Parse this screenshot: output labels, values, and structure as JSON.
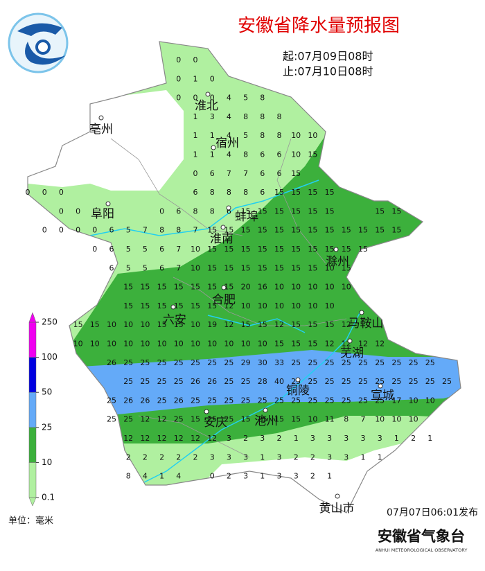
{
  "title": "安徽省降水量预报图",
  "start_time": "起:07月09日08时",
  "end_time": "止:07月10日08时",
  "cities": [
    "淮北",
    "宿州",
    "亳州",
    "阜阳",
    "蚌埠",
    "淮南",
    "滁州",
    "合肥",
    "六安",
    "马鞍山",
    "芜湖",
    "铜陵",
    "宣城",
    "安庆",
    "池州",
    "黄山市"
  ],
  "grid": {
    "rows": [
      [
        null,
        null,
        null,
        null,
        null,
        null,
        null,
        null,
        null,
        0,
        0
      ],
      [
        null,
        null,
        null,
        null,
        null,
        null,
        null,
        null,
        null,
        0,
        1,
        0
      ],
      [
        null,
        null,
        null,
        null,
        null,
        null,
        null,
        null,
        null,
        0,
        0,
        0,
        4,
        5,
        8
      ],
      [
        null,
        null,
        null,
        null,
        null,
        null,
        null,
        null,
        null,
        null,
        1,
        3,
        4,
        8,
        8,
        8
      ],
      [
        null,
        null,
        null,
        null,
        null,
        null,
        null,
        null,
        null,
        null,
        1,
        1,
        4,
        5,
        8,
        8,
        10,
        10
      ],
      [
        null,
        null,
        null,
        null,
        null,
        null,
        null,
        null,
        null,
        null,
        1,
        1,
        4,
        8,
        6,
        6,
        10,
        15
      ],
      [
        null,
        null,
        null,
        null,
        null,
        null,
        null,
        null,
        null,
        null,
        0,
        6,
        7,
        7,
        6,
        6,
        15
      ],
      [
        0,
        0,
        0,
        null,
        null,
        null,
        null,
        null,
        null,
        null,
        6,
        8,
        8,
        8,
        6,
        15,
        15,
        15,
        15
      ],
      [
        null,
        null,
        0,
        0,
        null,
        null,
        null,
        null,
        0,
        6,
        8,
        8,
        6,
        15,
        15,
        15,
        15,
        15,
        15,
        null,
        null,
        15,
        15
      ],
      [
        null,
        0,
        0,
        0,
        0,
        6,
        5,
        7,
        8,
        8,
        7,
        15,
        15,
        15,
        15,
        15,
        15,
        15,
        15,
        15,
        15,
        15,
        15
      ],
      [
        null,
        null,
        null,
        null,
        0,
        6,
        5,
        5,
        6,
        7,
        10,
        15,
        15,
        15,
        15,
        15,
        15,
        15,
        15,
        15,
        15
      ],
      [
        null,
        null,
        null,
        null,
        null,
        6,
        5,
        5,
        6,
        7,
        10,
        15,
        15,
        15,
        15,
        15,
        15,
        15,
        10,
        15
      ],
      [
        null,
        null,
        null,
        null,
        null,
        null,
        15,
        15,
        15,
        15,
        15,
        15,
        15,
        20,
        16,
        10,
        10,
        10,
        10,
        10
      ],
      [
        null,
        null,
        null,
        null,
        null,
        null,
        15,
        15,
        15,
        15,
        15,
        15,
        12,
        10,
        10,
        10,
        10,
        10,
        10
      ],
      [
        null,
        null,
        null,
        15,
        15,
        10,
        10,
        10,
        15,
        15,
        10,
        19,
        12,
        15,
        15,
        12,
        15,
        15,
        15,
        12
      ],
      [
        null,
        null,
        null,
        10,
        10,
        10,
        10,
        10,
        10,
        10,
        10,
        10,
        10,
        10,
        10,
        15,
        15,
        15,
        12,
        12,
        12,
        12
      ],
      [
        null,
        null,
        null,
        null,
        null,
        26,
        25,
        25,
        25,
        25,
        25,
        25,
        25,
        29,
        30,
        33,
        25,
        25,
        25,
        25,
        25,
        25,
        25,
        25,
        25
      ],
      [
        null,
        null,
        null,
        null,
        null,
        null,
        25,
        25,
        25,
        25,
        26,
        26,
        25,
        25,
        28,
        40,
        25,
        25,
        25,
        25,
        25,
        25,
        25,
        25,
        25,
        25
      ],
      [
        null,
        null,
        null,
        null,
        null,
        25,
        26,
        26,
        25,
        26,
        25,
        25,
        25,
        25,
        25,
        25,
        25,
        25,
        25,
        25,
        25,
        25,
        17,
        10,
        10
      ],
      [
        null,
        null,
        null,
        null,
        null,
        25,
        25,
        12,
        12,
        25,
        15,
        25,
        25,
        15,
        25,
        15,
        15,
        10,
        11,
        8,
        7,
        10,
        10,
        10
      ],
      [
        null,
        null,
        null,
        null,
        null,
        null,
        12,
        12,
        12,
        12,
        12,
        12,
        3,
        2,
        3,
        2,
        1,
        3,
        3,
        3,
        3,
        3,
        1,
        2,
        1
      ],
      [
        null,
        null,
        null,
        null,
        null,
        null,
        2,
        2,
        2,
        2,
        2,
        3,
        3,
        3,
        1,
        3,
        2,
        2,
        3,
        3,
        1,
        1
      ],
      [
        null,
        null,
        null,
        null,
        null,
        null,
        8,
        4,
        1,
        4,
        null,
        0,
        2,
        3,
        1,
        3,
        3,
        2,
        1
      ]
    ]
  },
  "legend": {
    "ticks": [
      0.1,
      10,
      25,
      50,
      100,
      250
    ],
    "colors": [
      "#b0f0a0",
      "#3cb03c",
      "#64aaf8",
      "#0000e0",
      "#f000f0"
    ]
  },
  "unit": "单位：毫米",
  "issued": "07月07日06:01发布",
  "agency": {
    "name": "安徽省气象台",
    "english": "ANHUI METEOROLOGICAL OBSERVATORY"
  }
}
